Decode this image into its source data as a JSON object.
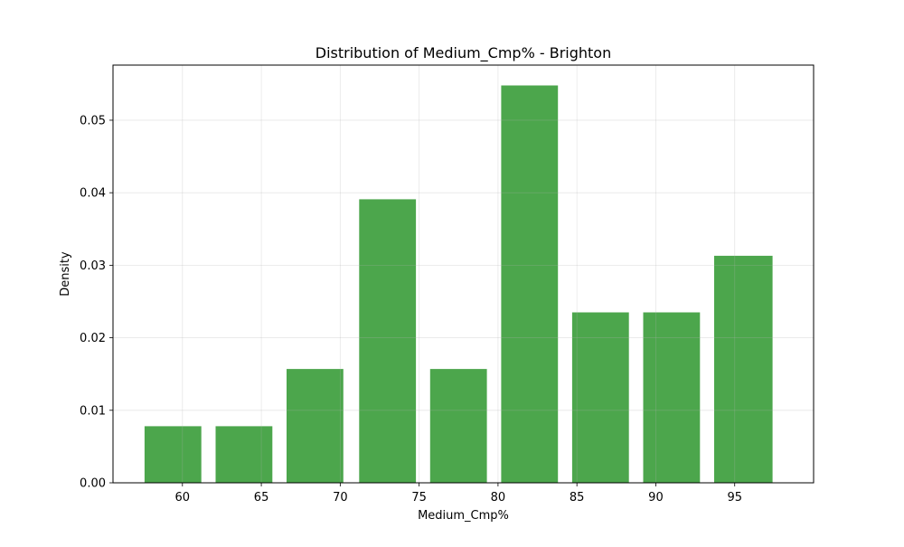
{
  "chart_data": {
    "type": "bar",
    "title": "Distribution of Medium_Cmp% - Brighton",
    "xlabel": "Medium_Cmp%",
    "ylabel": "Density",
    "xlim": [
      55.6,
      100.0
    ],
    "ylim": [
      0,
      0.0576
    ],
    "xticks": [
      60,
      65,
      70,
      75,
      80,
      85,
      90,
      95
    ],
    "yticks": [
      0.0,
      0.01,
      0.02,
      0.03,
      0.04,
      0.05
    ],
    "yticklabels": [
      "0.00",
      "0.01",
      "0.02",
      "0.03",
      "0.04",
      "0.05"
    ],
    "grid": true,
    "color": "#4ca64c",
    "bins": [
      {
        "x0": 57.6,
        "x1": 61.2,
        "density": 0.0078
      },
      {
        "x0": 62.1,
        "x1": 65.7,
        "density": 0.0078
      },
      {
        "x0": 66.6,
        "x1": 70.2,
        "density": 0.0157
      },
      {
        "x0": 71.2,
        "x1": 74.8,
        "density": 0.0391
      },
      {
        "x0": 75.7,
        "x1": 79.3,
        "density": 0.0157
      },
      {
        "x0": 80.2,
        "x1": 83.8,
        "density": 0.0548
      },
      {
        "x0": 84.7,
        "x1": 88.3,
        "density": 0.0235
      },
      {
        "x0": 89.2,
        "x1": 92.8,
        "density": 0.0235
      },
      {
        "x0": 93.7,
        "x1": 97.4,
        "density": 0.0313
      }
    ]
  }
}
